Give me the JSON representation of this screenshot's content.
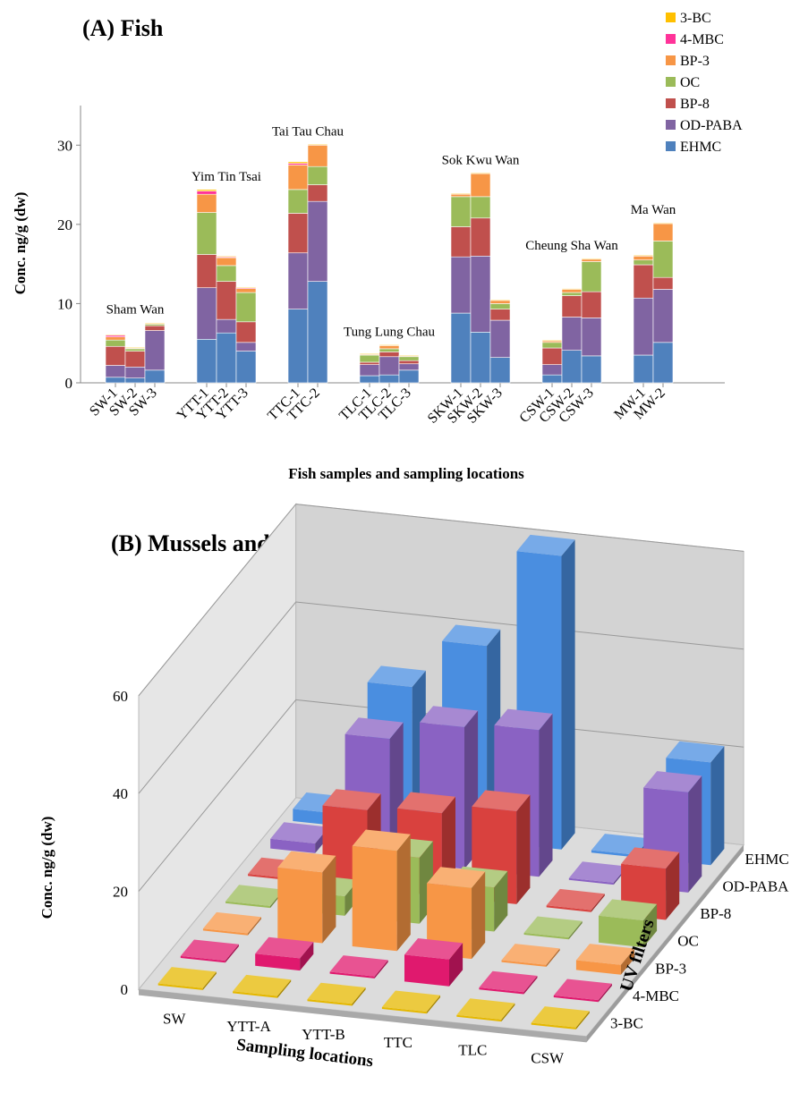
{
  "chart_data": [
    {
      "type": "bar",
      "stacked": true,
      "title": "(A) Fish",
      "xlabel": "Fish samples and sampling locations",
      "ylabel": "Conc. ng/g (dw)",
      "ylim": [
        0,
        35
      ],
      "yticks": [
        "0",
        "10",
        "20",
        "30"
      ],
      "grid": false,
      "legend_position": "top-right",
      "series": [
        {
          "name": "EHMC",
          "color": "#4f81bd"
        },
        {
          "name": "OD-PABA",
          "color": "#8064a2"
        },
        {
          "name": "BP-8",
          "color": "#c0504d"
        },
        {
          "name": "OC",
          "color": "#9bbb59"
        },
        {
          "name": "BP-3",
          "color": "#f79646"
        },
        {
          "name": "4-MBC",
          "color": "#ff3399"
        },
        {
          "name": "3-BC",
          "color": "#ffc000"
        }
      ],
      "legend_order": [
        "3-BC",
        "4-MBC",
        "BP-3",
        "OC",
        "BP-8",
        "OD-PABA",
        "EHMC"
      ],
      "groups": [
        {
          "location": "Sham Wan",
          "samples": [
            {
              "label": "SW-1",
              "values": [
                0.7,
                1.5,
                2.4,
                0.8,
                0.4,
                0.2,
                0.1
              ]
            },
            {
              "label": "SW-2",
              "values": [
                0.6,
                1.4,
                2.0,
                0.3,
                0.1,
                0,
                0.1
              ]
            },
            {
              "label": "SW-3",
              "values": [
                1.6,
                5.0,
                0.6,
                0.2,
                0.1,
                0,
                0.1
              ]
            }
          ]
        },
        {
          "location": "Yim Tin Tsai",
          "samples": [
            {
              "label": "YTT-1",
              "values": [
                5.5,
                6.5,
                4.2,
                5.3,
                2.3,
                0.4,
                0.2
              ]
            },
            {
              "label": "YTT-2",
              "values": [
                6.3,
                1.7,
                4.8,
                2.0,
                1.0,
                0.1,
                0.1
              ]
            },
            {
              "label": "YTT-3",
              "values": [
                4.0,
                1.1,
                2.6,
                3.7,
                0.5,
                0.1,
                0.1
              ]
            }
          ]
        },
        {
          "location": "Tai Tau Chau",
          "samples": [
            {
              "label": "TTC-1",
              "values": [
                9.3,
                7.1,
                5.0,
                3.0,
                3.1,
                0.2,
                0.2
              ]
            },
            {
              "label": "TTC-2",
              "values": [
                12.8,
                10.1,
                2.1,
                2.3,
                2.7,
                0,
                0.1
              ]
            }
          ]
        },
        {
          "location": "Tung Lung Chau",
          "samples": [
            {
              "label": "TLC-1",
              "values": [
                0.9,
                1.4,
                0.3,
                0.9,
                0.1,
                0,
                0.1
              ]
            },
            {
              "label": "TLC-2",
              "values": [
                1.0,
                2.3,
                0.6,
                0.4,
                0.4,
                0,
                0.1
              ]
            },
            {
              "label": "TLC-3",
              "values": [
                1.6,
                0.8,
                0.4,
                0.5,
                0.1,
                0,
                0.1
              ]
            }
          ]
        },
        {
          "location": "Sok Kwu Wan",
          "samples": [
            {
              "label": "SKW-1",
              "values": [
                8.8,
                7.1,
                3.8,
                3.8,
                0.3,
                0,
                0.1
              ]
            },
            {
              "label": "SKW-2",
              "values": [
                6.4,
                9.6,
                4.8,
                2.7,
                2.9,
                0,
                0.1
              ]
            },
            {
              "label": "SKW-3",
              "values": [
                3.2,
                4.7,
                1.4,
                0.7,
                0.4,
                0,
                0.1
              ]
            }
          ]
        },
        {
          "location": "Cheung Sha Wan",
          "samples": [
            {
              "label": "CSW-1",
              "values": [
                1.0,
                1.3,
                2.1,
                0.7,
                0.2,
                0,
                0.1
              ]
            },
            {
              "label": "CSW-2",
              "values": [
                4.1,
                4.2,
                2.7,
                0.4,
                0.4,
                0,
                0.1
              ]
            },
            {
              "label": "CSW-3",
              "values": [
                3.4,
                4.8,
                3.3,
                3.8,
                0.3,
                0,
                0.1
              ]
            }
          ]
        },
        {
          "location": "Ma Wan",
          "samples": [
            {
              "label": "MW-1",
              "values": [
                3.5,
                7.2,
                4.2,
                0.6,
                0.5,
                0,
                0.1
              ]
            },
            {
              "label": "MW-2",
              "values": [
                5.1,
                6.7,
                1.5,
                4.6,
                2.2,
                0,
                0.1
              ]
            }
          ]
        }
      ]
    },
    {
      "type": "bar",
      "variant": "3d",
      "title": "(B) Mussels and clams",
      "xlabel": "Sampling locations",
      "ylabel": "Conc. ng/g (dw)",
      "zlabel": "UV filters",
      "ylim": [
        0,
        60
      ],
      "yticks": [
        "0",
        "20",
        "40",
        "60"
      ],
      "grid": true,
      "categories": [
        "SW",
        "YTT-A",
        "YTT-B",
        "TTC",
        "TLC",
        "CSW"
      ],
      "series": [
        {
          "name": "3-BC",
          "color": "#e5b800",
          "values": [
            0.4,
            0.4,
            0.4,
            0.4,
            0.4,
            0.4
          ]
        },
        {
          "name": "4-MBC",
          "color": "#e0196e",
          "values": [
            0.4,
            2.5,
            0.4,
            5.5,
            0.4,
            0.4
          ]
        },
        {
          "name": "BP-3",
          "color": "#f79646",
          "values": [
            0.4,
            14.5,
            20.5,
            14.5,
            0.4,
            2.0
          ]
        },
        {
          "name": "OC",
          "color": "#9bbb59",
          "values": [
            0.4,
            4.0,
            13.5,
            9.0,
            0.4,
            5.5
          ]
        },
        {
          "name": "BP-8",
          "color": "#d9413e",
          "values": [
            0.4,
            16.0,
            17.0,
            19.0,
            0.4,
            10.5
          ]
        },
        {
          "name": "OD-PABA",
          "color": "#8a62c3",
          "values": [
            2.0,
            25.0,
            29.0,
            30.0,
            0.4,
            20.5
          ]
        },
        {
          "name": "EHMC",
          "color": "#4a8ee0",
          "values": [
            2.5,
            30.0,
            40.0,
            60.0,
            0.5,
            21.0
          ]
        }
      ]
    }
  ]
}
